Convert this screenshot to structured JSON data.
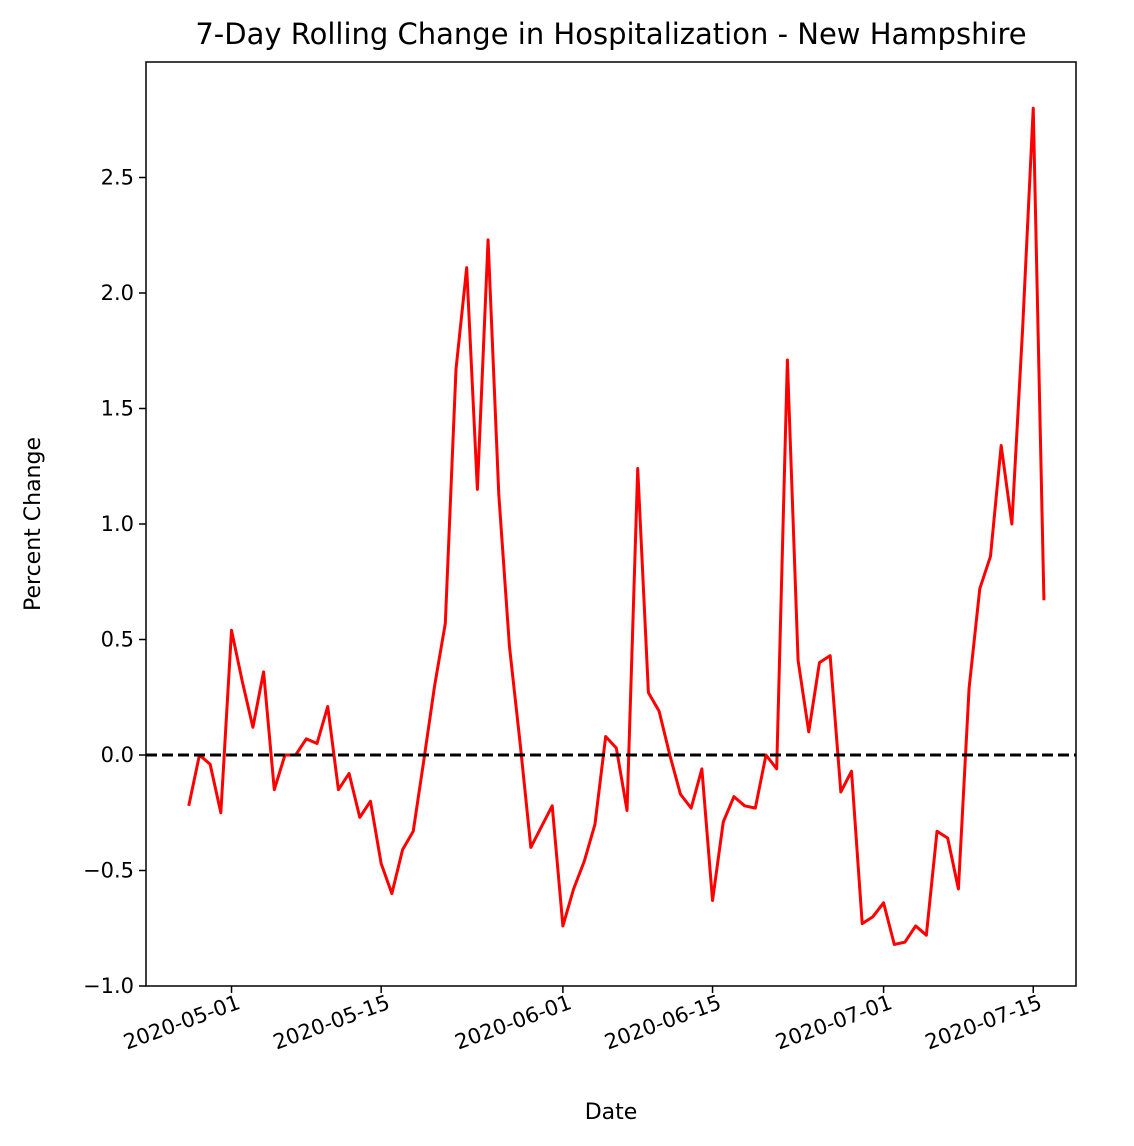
{
  "chart_data": {
    "type": "line",
    "title": "7-Day Rolling Change in Hospitalization - New Hampshire",
    "xlabel": "Date",
    "ylabel": "Percent Change",
    "xlim": [
      "2020-04-23",
      "2020-07-19"
    ],
    "ylim": [
      -1.0,
      3.0
    ],
    "x_ticks": [
      "2020-05-01",
      "2020-05-15",
      "2020-06-01",
      "2020-06-15",
      "2020-07-01",
      "2020-07-15"
    ],
    "y_ticks": [
      -1.0,
      -0.5,
      0.0,
      0.5,
      1.0,
      1.5,
      2.0,
      2.5
    ],
    "y_tick_labels": [
      "−1.0",
      "−0.5",
      "0.0",
      "0.5",
      "1.0",
      "1.5",
      "2.0",
      "2.5"
    ],
    "grid": false,
    "reference_line": {
      "y": 0.0,
      "style": "dashed",
      "color": "#000000"
    },
    "series": [
      {
        "color": "#ff0000",
        "start_date": "2020-04-27",
        "values": [
          -0.22,
          0.0,
          -0.04,
          -0.25,
          0.54,
          0.32,
          0.12,
          0.36,
          -0.15,
          0.0,
          0.0,
          0.07,
          0.05,
          0.21,
          -0.15,
          -0.08,
          -0.27,
          -0.2,
          -0.47,
          -0.6,
          -0.41,
          -0.33,
          -0.02,
          0.3,
          0.57,
          1.67,
          2.11,
          1.15,
          2.23,
          1.13,
          0.47,
          0.05,
          -0.4,
          -0.31,
          -0.22,
          -0.74,
          -0.58,
          -0.46,
          -0.3,
          0.08,
          0.03,
          -0.24,
          1.24,
          0.27,
          0.19,
          0.0,
          -0.17,
          -0.23,
          -0.06,
          -0.63,
          -0.29,
          -0.18,
          -0.22,
          -0.23,
          0.0,
          -0.06,
          1.71,
          0.41,
          0.1,
          0.4,
          0.43,
          -0.16,
          -0.07,
          -0.73,
          -0.7,
          -0.64,
          -0.82,
          -0.81,
          -0.74,
          -0.78,
          -0.33,
          -0.36,
          -0.58,
          0.29,
          0.72,
          0.86,
          1.34,
          1.0,
          1.84,
          2.8,
          0.67
        ]
      }
    ]
  }
}
